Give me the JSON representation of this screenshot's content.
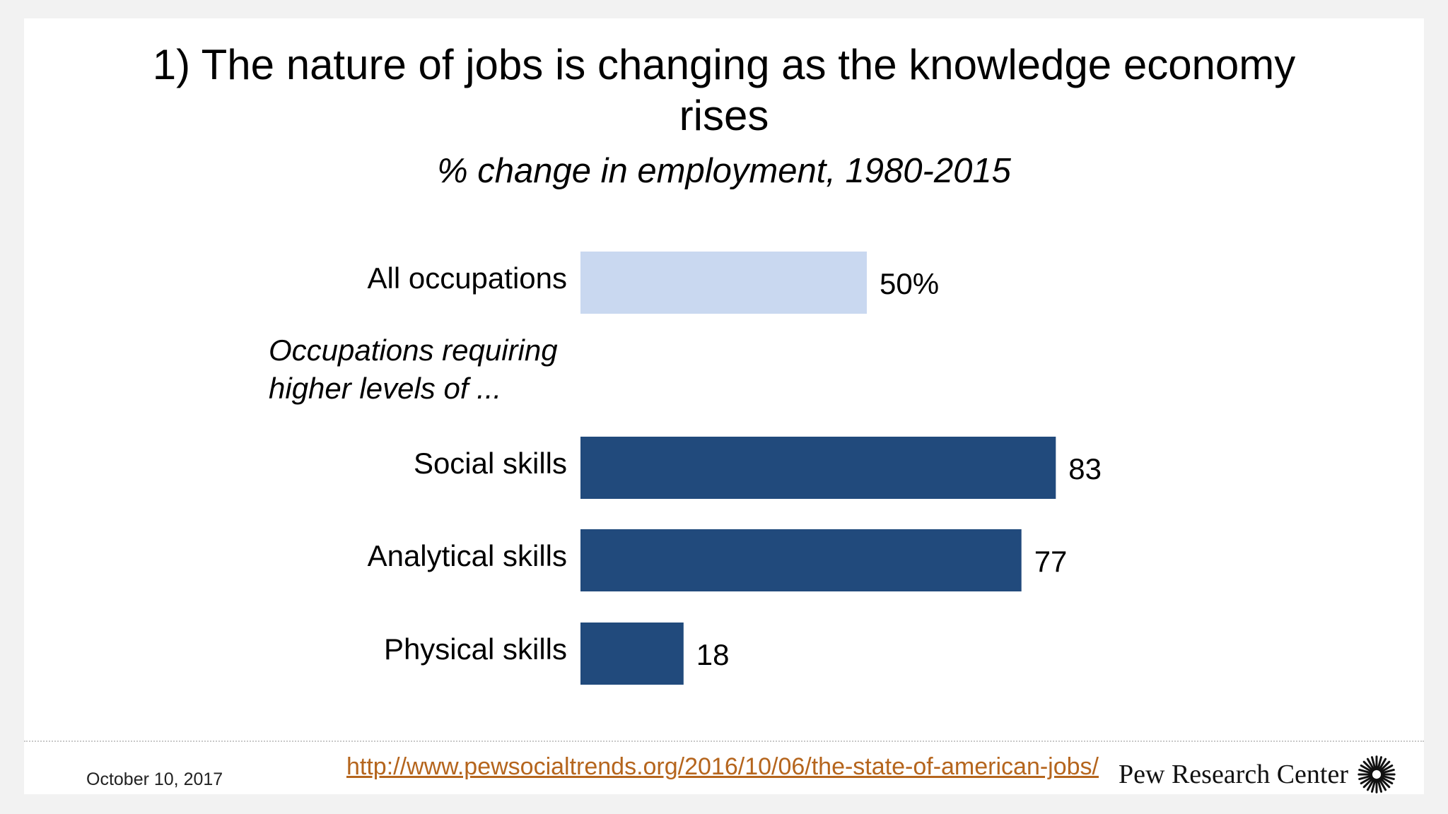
{
  "slide": {
    "title_line1": "1) The nature of jobs is changing as the knowledge economy",
    "title_line2": "rises",
    "subtitle": "% change in employment, 1980-2015",
    "group_label_line1": "Occupations requiring",
    "group_label_line2": "higher levels of ..."
  },
  "chart_data": {
    "type": "bar",
    "orientation": "horizontal",
    "categories": [
      "All occupations",
      "Social skills",
      "Analytical skills",
      "Physical skills"
    ],
    "values": [
      50,
      83,
      77,
      18
    ],
    "value_labels": [
      "50%",
      "83",
      "77",
      "18"
    ],
    "colors": [
      "#c9d8f0",
      "#214a7c",
      "#214a7c",
      "#214a7c"
    ],
    "title": "1) The nature of jobs is changing as the knowledge economy rises",
    "subtitle": "% change in employment, 1980-2015",
    "xlabel": "",
    "ylabel": "",
    "xlim": [
      0,
      100
    ],
    "grid": false,
    "legend": "none"
  },
  "footer": {
    "date": "October 10, 2017",
    "url": "http://www.pewsocialtrends.org/2016/10/06/the-state-of-american-jobs/",
    "logo_text": "Pew Research Center",
    "logo_icon": "sunburst-icon"
  },
  "colors": {
    "background": "#f2f2f2",
    "slide": "#ffffff",
    "bar_light": "#c9d8f0",
    "bar_dark": "#214a7c",
    "link": "#b5651d"
  }
}
